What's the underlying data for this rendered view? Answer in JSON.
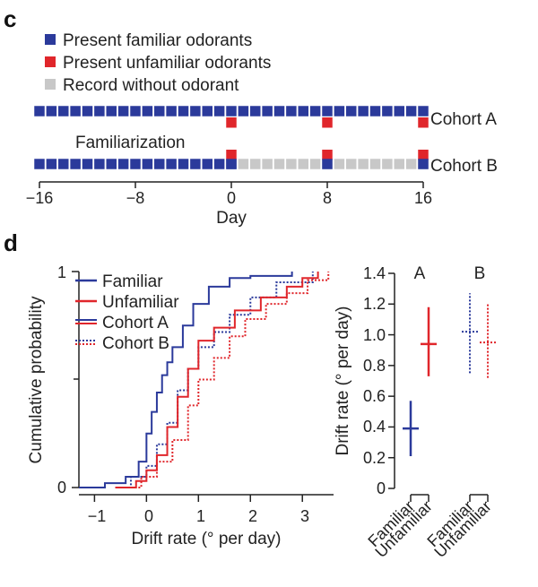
{
  "colors": {
    "familiar": "#2b3a9b",
    "unfamiliar": "#e0262b",
    "record": "#c8c8c8",
    "axis": "#222222"
  },
  "panel_c": {
    "letter": "c",
    "legend": [
      "Present familiar odorants",
      "Present unfamiliar odorants",
      "Record without odorant"
    ],
    "familiarization_label": "Familiarization",
    "cohort_labels": [
      "Cohort A",
      "Cohort B"
    ],
    "x_ticks": [
      "−16",
      "−8",
      "0",
      "8",
      "16"
    ],
    "x_label": "Day"
  },
  "panel_d": {
    "letter": "d",
    "legend": [
      "Familiar",
      "Unfamiliar",
      "Cohort A",
      "Cohort B"
    ],
    "x_label": "Drift rate (° per day)",
    "y_label": "Cumulative probability",
    "x_ticks": [
      "−1",
      "0",
      "1",
      "2",
      "3"
    ],
    "y_ticks": [
      "0",
      "1"
    ],
    "right": {
      "y_label": "Drift rate (° per day)",
      "y_ticks": [
        "0",
        "0.2",
        "0.4",
        "0.6",
        "0.8",
        "1.0",
        "1.2",
        "1.4"
      ],
      "group_labels": [
        "A",
        "B"
      ],
      "x_labels": [
        "Familiar",
        "Unfamiliar",
        "Familiar",
        "Unfamiliar"
      ]
    }
  },
  "chart_data": [
    {
      "type": "timeline",
      "xlim": [
        -16,
        16
      ],
      "xlabel": "Day",
      "legend": [
        "Present familiar odorants",
        "Present unfamiliar odorants",
        "Record without odorant"
      ],
      "series": [
        {
          "name": "Cohort A",
          "familiar_days": [
            -16,
            16
          ],
          "unfamiliar_days": [
            0,
            8,
            16
          ],
          "record_days": []
        },
        {
          "name": "Cohort B",
          "familiar_days": [
            -16,
            0
          ],
          "unfamiliar_days": [
            0,
            8,
            16
          ],
          "record_days": [
            1,
            16
          ]
        }
      ]
    },
    {
      "type": "line",
      "subtype": "cumulative distribution",
      "xlabel": "Drift rate (° per day)",
      "ylabel": "Cumulative probability",
      "xlim": [
        -1.3,
        3.6
      ],
      "ylim": [
        0,
        1
      ],
      "legend": [
        "Familiar",
        "Unfamiliar",
        "Cohort A",
        "Cohort B"
      ],
      "series": [
        {
          "name": "Familiar",
          "cohort": "A",
          "color": "#2b3a9b",
          "dash": "solid",
          "x": [
            -1.3,
            -0.8,
            -0.4,
            -0.15,
            0.0,
            0.1,
            0.2,
            0.3,
            0.4,
            0.5,
            0.7,
            0.9,
            1.2,
            1.6,
            2.0,
            2.8
          ],
          "y": [
            0.0,
            0.02,
            0.05,
            0.12,
            0.25,
            0.35,
            0.44,
            0.52,
            0.58,
            0.65,
            0.75,
            0.85,
            0.93,
            0.97,
            0.98,
            1.0
          ]
        },
        {
          "name": "Familiar",
          "cohort": "B",
          "color": "#2b3a9b",
          "dash": "dotted",
          "x": [
            -0.6,
            -0.3,
            0.0,
            0.2,
            0.4,
            0.6,
            0.8,
            1.0,
            1.3,
            1.6,
            2.0,
            2.5,
            3.2
          ],
          "y": [
            0.0,
            0.05,
            0.1,
            0.2,
            0.3,
            0.45,
            0.55,
            0.65,
            0.72,
            0.8,
            0.88,
            0.95,
            1.0
          ]
        },
        {
          "name": "Unfamiliar",
          "cohort": "A",
          "color": "#e0262b",
          "dash": "solid",
          "x": [
            -0.6,
            -0.2,
            0.0,
            0.2,
            0.4,
            0.6,
            0.8,
            1.0,
            1.3,
            1.7,
            2.2,
            2.7,
            3.0,
            3.3
          ],
          "y": [
            0.0,
            0.03,
            0.08,
            0.15,
            0.28,
            0.42,
            0.55,
            0.68,
            0.74,
            0.82,
            0.88,
            0.93,
            0.97,
            1.0
          ]
        },
        {
          "name": "Unfamiliar",
          "cohort": "B",
          "color": "#e0262b",
          "dash": "dotted",
          "x": [
            -0.5,
            -0.1,
            0.2,
            0.5,
            0.8,
            1.0,
            1.3,
            1.6,
            1.9,
            2.3,
            2.7,
            3.1,
            3.5
          ],
          "y": [
            0.0,
            0.05,
            0.12,
            0.22,
            0.38,
            0.5,
            0.6,
            0.7,
            0.78,
            0.85,
            0.9,
            0.96,
            1.0
          ]
        }
      ]
    },
    {
      "type": "errorbar",
      "ylabel": "Drift rate (° per day)",
      "ylim": [
        0,
        1.4
      ],
      "groups": [
        "A",
        "B"
      ],
      "categories": [
        "Familiar",
        "Unfamiliar",
        "Familiar",
        "Unfamiliar"
      ],
      "series": [
        {
          "name": "A Familiar",
          "group": "A",
          "color": "#2b3a9b",
          "dash": "solid",
          "mean": 0.39,
          "low": 0.21,
          "high": 0.57
        },
        {
          "name": "A Unfamiliar",
          "group": "A",
          "color": "#e0262b",
          "dash": "solid",
          "mean": 0.94,
          "low": 0.73,
          "high": 1.18
        },
        {
          "name": "B Familiar",
          "group": "B",
          "color": "#2b3a9b",
          "dash": "dotted",
          "mean": 1.02,
          "low": 0.75,
          "high": 1.27
        },
        {
          "name": "B Unfamiliar",
          "group": "B",
          "color": "#e0262b",
          "dash": "dotted",
          "mean": 0.95,
          "low": 0.72,
          "high": 1.21
        }
      ]
    }
  ]
}
